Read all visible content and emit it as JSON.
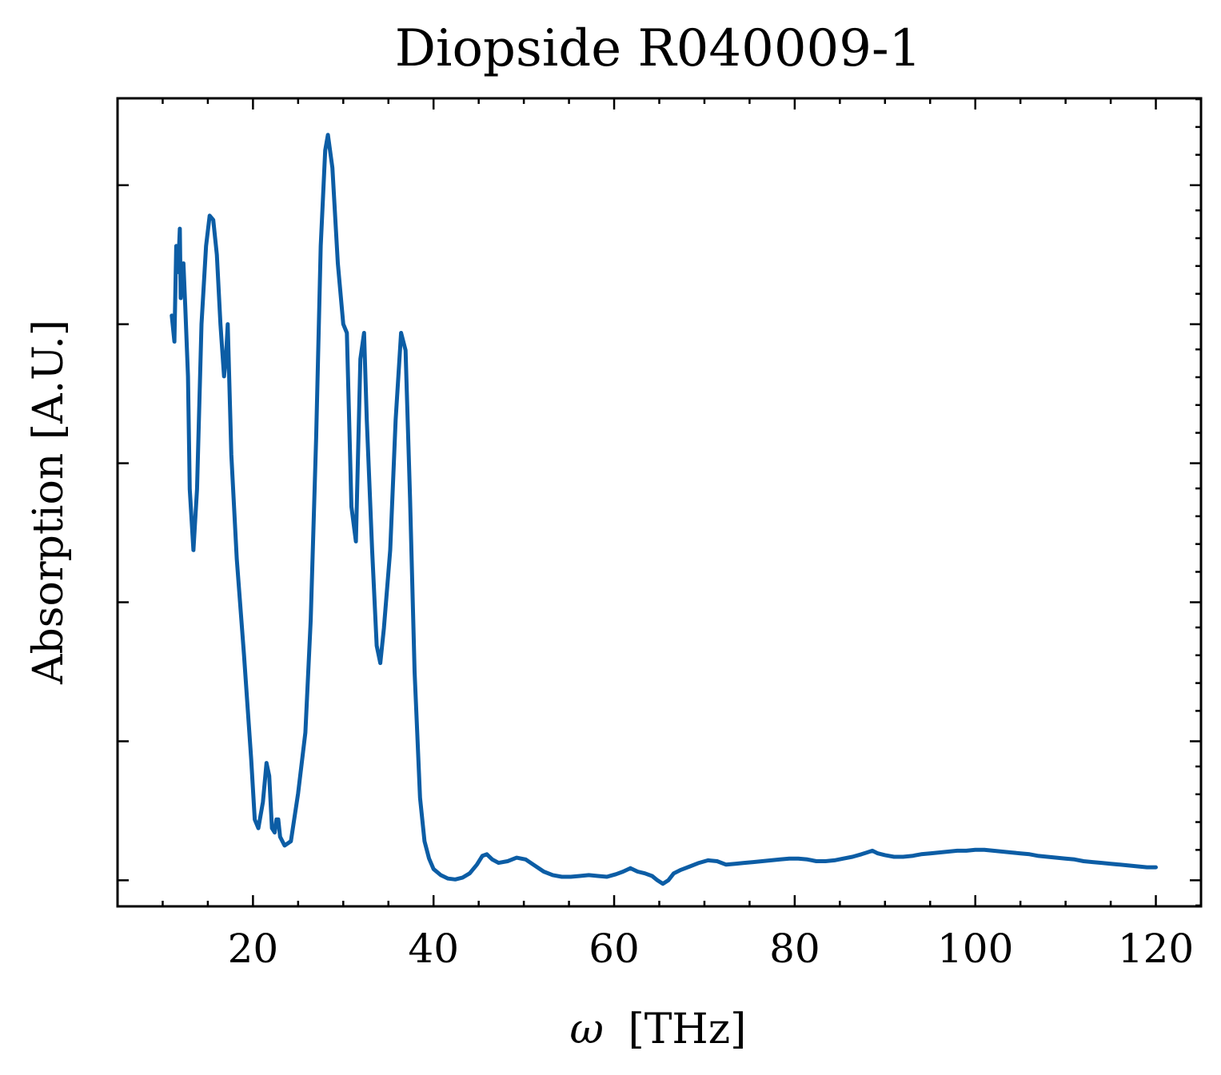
{
  "chart_data": {
    "type": "line",
    "title": "Diopside R040009-1",
    "xlabel_symbol": "ω",
    "xlabel_unit": "[THz]",
    "ylabel": "Absorption [A.U.]",
    "xlim": [
      5,
      125
    ],
    "ylim": [
      0.12,
      1.05
    ],
    "x_ticks": [
      20,
      40,
      60,
      80,
      100,
      120
    ],
    "x_tick_labels": [
      "20",
      "40",
      "60",
      "80",
      "100",
      "120"
    ],
    "x_minor_step": 5,
    "y_major_ticks": [
      0.15,
      0.31,
      0.47,
      0.63,
      0.79,
      0.95
    ],
    "y_minor_step": 0.032,
    "y_tick_labels_shown": false,
    "grid": false,
    "legend": "none",
    "colors": {
      "line": "#0c5da5"
    },
    "series": [
      {
        "color": "#0c5da5",
        "points": [
          [
            11.0,
            0.8
          ],
          [
            11.3,
            0.77
          ],
          [
            11.5,
            0.88
          ],
          [
            11.7,
            0.85
          ],
          [
            11.9,
            0.9
          ],
          [
            12.0,
            0.82
          ],
          [
            12.3,
            0.86
          ],
          [
            12.5,
            0.81
          ],
          [
            12.8,
            0.73
          ],
          [
            13.0,
            0.6
          ],
          [
            13.4,
            0.53
          ],
          [
            13.8,
            0.6
          ],
          [
            14.3,
            0.79
          ],
          [
            14.8,
            0.88
          ],
          [
            15.2,
            0.915
          ],
          [
            15.6,
            0.91
          ],
          [
            16.0,
            0.87
          ],
          [
            16.4,
            0.79
          ],
          [
            16.8,
            0.73
          ],
          [
            17.0,
            0.75
          ],
          [
            17.2,
            0.79
          ],
          [
            17.6,
            0.64
          ],
          [
            18.2,
            0.52
          ],
          [
            19.0,
            0.41
          ],
          [
            19.8,
            0.29
          ],
          [
            20.2,
            0.22
          ],
          [
            20.6,
            0.21
          ],
          [
            21.1,
            0.24
          ],
          [
            21.5,
            0.285
          ],
          [
            21.8,
            0.27
          ],
          [
            22.1,
            0.21
          ],
          [
            22.4,
            0.205
          ],
          [
            22.6,
            0.22
          ],
          [
            22.8,
            0.22
          ],
          [
            23.0,
            0.2
          ],
          [
            23.5,
            0.19
          ],
          [
            24.2,
            0.195
          ],
          [
            25.0,
            0.25
          ],
          [
            25.8,
            0.32
          ],
          [
            26.4,
            0.45
          ],
          [
            27.0,
            0.66
          ],
          [
            27.5,
            0.88
          ],
          [
            28.0,
            0.99
          ],
          [
            28.3,
            1.008
          ],
          [
            28.8,
            0.97
          ],
          [
            29.4,
            0.86
          ],
          [
            30.0,
            0.79
          ],
          [
            30.4,
            0.78
          ],
          [
            30.9,
            0.58
          ],
          [
            31.4,
            0.54
          ],
          [
            31.9,
            0.75
          ],
          [
            32.3,
            0.78
          ],
          [
            32.6,
            0.68
          ],
          [
            33.2,
            0.53
          ],
          [
            33.7,
            0.42
          ],
          [
            34.1,
            0.4
          ],
          [
            34.5,
            0.44
          ],
          [
            35.2,
            0.53
          ],
          [
            35.8,
            0.68
          ],
          [
            36.4,
            0.78
          ],
          [
            36.9,
            0.76
          ],
          [
            37.4,
            0.59
          ],
          [
            37.9,
            0.39
          ],
          [
            38.5,
            0.245
          ],
          [
            39.0,
            0.195
          ],
          [
            39.5,
            0.175
          ],
          [
            40.0,
            0.163
          ],
          [
            40.8,
            0.156
          ],
          [
            41.6,
            0.152
          ],
          [
            42.4,
            0.151
          ],
          [
            43.2,
            0.153
          ],
          [
            44.0,
            0.158
          ],
          [
            44.8,
            0.168
          ],
          [
            45.4,
            0.178
          ],
          [
            45.9,
            0.18
          ],
          [
            46.5,
            0.174
          ],
          [
            47.2,
            0.17
          ],
          [
            48.2,
            0.172
          ],
          [
            49.2,
            0.176
          ],
          [
            50.2,
            0.174
          ],
          [
            51.2,
            0.167
          ],
          [
            52.2,
            0.16
          ],
          [
            53.2,
            0.156
          ],
          [
            54.2,
            0.154
          ],
          [
            55.2,
            0.154
          ],
          [
            56.2,
            0.155
          ],
          [
            57.2,
            0.156
          ],
          [
            58.2,
            0.155
          ],
          [
            59.2,
            0.154
          ],
          [
            60.2,
            0.157
          ],
          [
            61.0,
            0.16
          ],
          [
            61.8,
            0.164
          ],
          [
            62.6,
            0.16
          ],
          [
            63.4,
            0.158
          ],
          [
            64.2,
            0.155
          ],
          [
            64.8,
            0.15
          ],
          [
            65.4,
            0.146
          ],
          [
            66.0,
            0.15
          ],
          [
            66.6,
            0.158
          ],
          [
            67.4,
            0.162
          ],
          [
            68.4,
            0.166
          ],
          [
            69.4,
            0.17
          ],
          [
            70.4,
            0.173
          ],
          [
            71.4,
            0.172
          ],
          [
            72.4,
            0.168
          ],
          [
            73.4,
            0.169
          ],
          [
            74.4,
            0.17
          ],
          [
            75.4,
            0.171
          ],
          [
            76.4,
            0.172
          ],
          [
            77.4,
            0.173
          ],
          [
            78.4,
            0.174
          ],
          [
            79.4,
            0.175
          ],
          [
            80.4,
            0.175
          ],
          [
            81.4,
            0.174
          ],
          [
            82.4,
            0.172
          ],
          [
            83.4,
            0.172
          ],
          [
            84.4,
            0.173
          ],
          [
            85.4,
            0.175
          ],
          [
            86.4,
            0.177
          ],
          [
            87.4,
            0.18
          ],
          [
            88.0,
            0.182
          ],
          [
            88.6,
            0.184
          ],
          [
            89.2,
            0.181
          ],
          [
            90.0,
            0.179
          ],
          [
            91.0,
            0.177
          ],
          [
            92.0,
            0.177
          ],
          [
            93.0,
            0.178
          ],
          [
            94.0,
            0.18
          ],
          [
            95.0,
            0.181
          ],
          [
            96.0,
            0.182
          ],
          [
            97.0,
            0.183
          ],
          [
            98.0,
            0.184
          ],
          [
            99.0,
            0.184
          ],
          [
            100.0,
            0.185
          ],
          [
            101.0,
            0.185
          ],
          [
            102.0,
            0.184
          ],
          [
            103.0,
            0.183
          ],
          [
            104.0,
            0.182
          ],
          [
            105.0,
            0.181
          ],
          [
            106.0,
            0.18
          ],
          [
            107.0,
            0.178
          ],
          [
            108.0,
            0.177
          ],
          [
            109.0,
            0.176
          ],
          [
            110.0,
            0.175
          ],
          [
            111.0,
            0.174
          ],
          [
            112.0,
            0.172
          ],
          [
            113.0,
            0.171
          ],
          [
            114.0,
            0.17
          ],
          [
            115.0,
            0.169
          ],
          [
            116.0,
            0.168
          ],
          [
            117.0,
            0.167
          ],
          [
            118.0,
            0.166
          ],
          [
            119.0,
            0.165
          ],
          [
            120.0,
            0.165
          ]
        ]
      }
    ]
  }
}
